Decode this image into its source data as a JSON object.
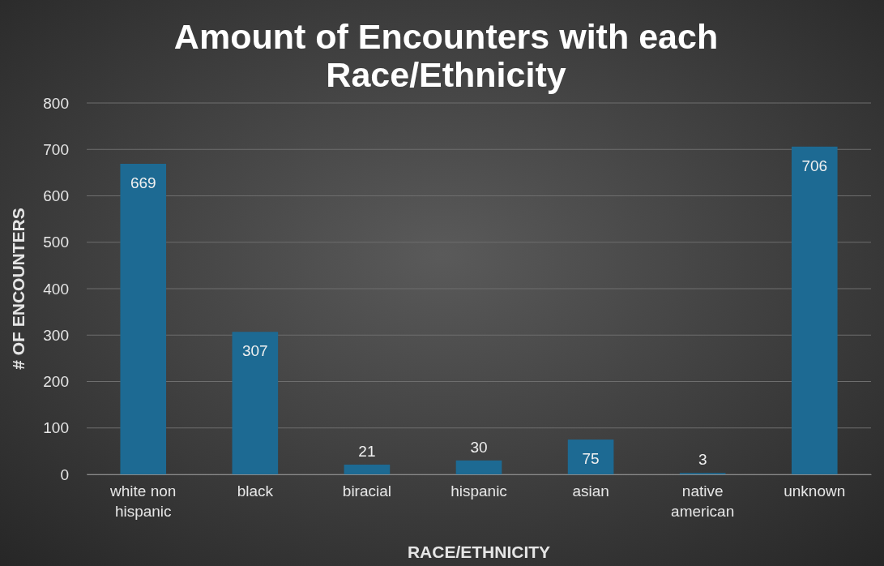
{
  "chart_data": {
    "type": "bar",
    "title": "Amount of Encounters with each Race/Ethnicity",
    "xlabel": "RACE/ETHNICITY",
    "ylabel": "# OF ENCOUNTERS",
    "categories": [
      "white non hispanic",
      "black",
      "biracial",
      "hispanic",
      "asian",
      "native american",
      "unknown"
    ],
    "values": [
      669,
      307,
      21,
      30,
      75,
      3,
      706
    ],
    "color": "#1d6a93",
    "ylim": [
      0,
      800
    ],
    "yticks": [
      0,
      100,
      200,
      300,
      400,
      500,
      600,
      700,
      800
    ],
    "grid": "y",
    "data_labels": true
  }
}
